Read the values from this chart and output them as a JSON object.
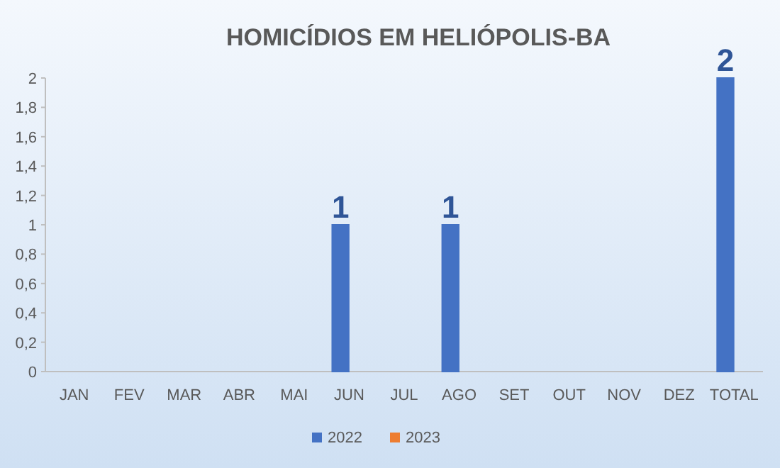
{
  "chart_data": {
    "type": "bar",
    "title": "HOMICÍDIOS EM HELIÓPOLIS-BA",
    "categories": [
      "JAN",
      "FEV",
      "MAR",
      "ABR",
      "MAI",
      "JUN",
      "JUL",
      "AGO",
      "SET",
      "OUT",
      "NOV",
      "DEZ",
      "TOTAL"
    ],
    "series": [
      {
        "name": "2022",
        "color": "#4472c4",
        "values": [
          0,
          0,
          0,
          0,
          0,
          1,
          0,
          1,
          0,
          0,
          0,
          0,
          2
        ],
        "value_labels": [
          null,
          null,
          null,
          null,
          null,
          "1",
          null,
          "1",
          null,
          null,
          null,
          null,
          "2"
        ]
      },
      {
        "name": "2023",
        "color": "#ed7d31",
        "values": [
          0,
          0,
          0,
          0,
          0,
          0,
          0,
          0,
          0,
          0,
          0,
          0,
          0
        ]
      }
    ],
    "ylim": [
      0,
      2
    ],
    "yticks": [
      0,
      {
        "value": 0.2,
        "label": "0,2"
      },
      {
        "value": 0.4,
        "label": "0,4"
      },
      {
        "value": 0.6,
        "label": "0,6"
      },
      {
        "value": 0.8,
        "label": "0,8"
      },
      1,
      {
        "value": 1.2,
        "label": "1,2"
      },
      {
        "value": 1.4,
        "label": "1,4"
      },
      {
        "value": 1.6,
        "label": "1,6"
      },
      {
        "value": 1.8,
        "label": "1,8"
      },
      2
    ],
    "legend": "bottom"
  }
}
